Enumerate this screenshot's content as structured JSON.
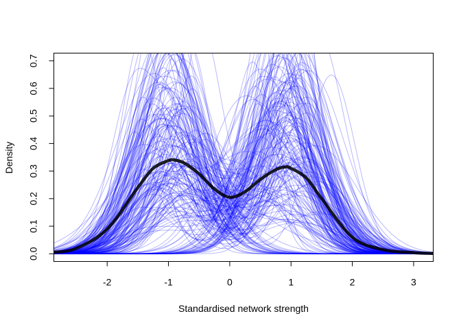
{
  "chart_data": {
    "type": "line",
    "title": "",
    "xlabel": "Standardised network strength",
    "ylabel": "Density",
    "xlim": [
      -2.87,
      3.32
    ],
    "ylim": [
      -0.028,
      0.728
    ],
    "x_ticks": [
      -2,
      -1,
      0,
      1,
      2,
      3
    ],
    "y_ticks": [
      0.0,
      0.1,
      0.2,
      0.3,
      0.4,
      0.5,
      0.6,
      0.7
    ],
    "x_tick_labels": [
      "-2",
      "-1",
      "0",
      "1",
      "2",
      "3"
    ],
    "y_tick_labels": [
      "0.0",
      "0.1",
      "0.2",
      "0.3",
      "0.4",
      "0.5",
      "0.6",
      "0.7"
    ],
    "grid": false,
    "legend": "none",
    "colors": {
      "replicates": "#0000ff",
      "mean": "#000000",
      "axis": "#000000"
    },
    "series": [
      {
        "role": "mean density (thick black)",
        "x": [
          -2.87,
          -2.5,
          -2.0,
          -1.5,
          -1.25,
          -1.0,
          -0.9,
          -0.75,
          -0.5,
          -0.25,
          0.0,
          0.25,
          0.5,
          0.75,
          0.9,
          1.0,
          1.25,
          1.5,
          2.0,
          2.5,
          3.0,
          3.32
        ],
        "y": [
          0.005,
          0.02,
          0.09,
          0.24,
          0.31,
          0.338,
          0.34,
          0.33,
          0.29,
          0.235,
          0.205,
          0.225,
          0.27,
          0.305,
          0.315,
          0.31,
          0.275,
          0.2,
          0.06,
          0.015,
          0.004,
          0.001
        ]
      }
    ],
    "replicate_count": 200
  }
}
